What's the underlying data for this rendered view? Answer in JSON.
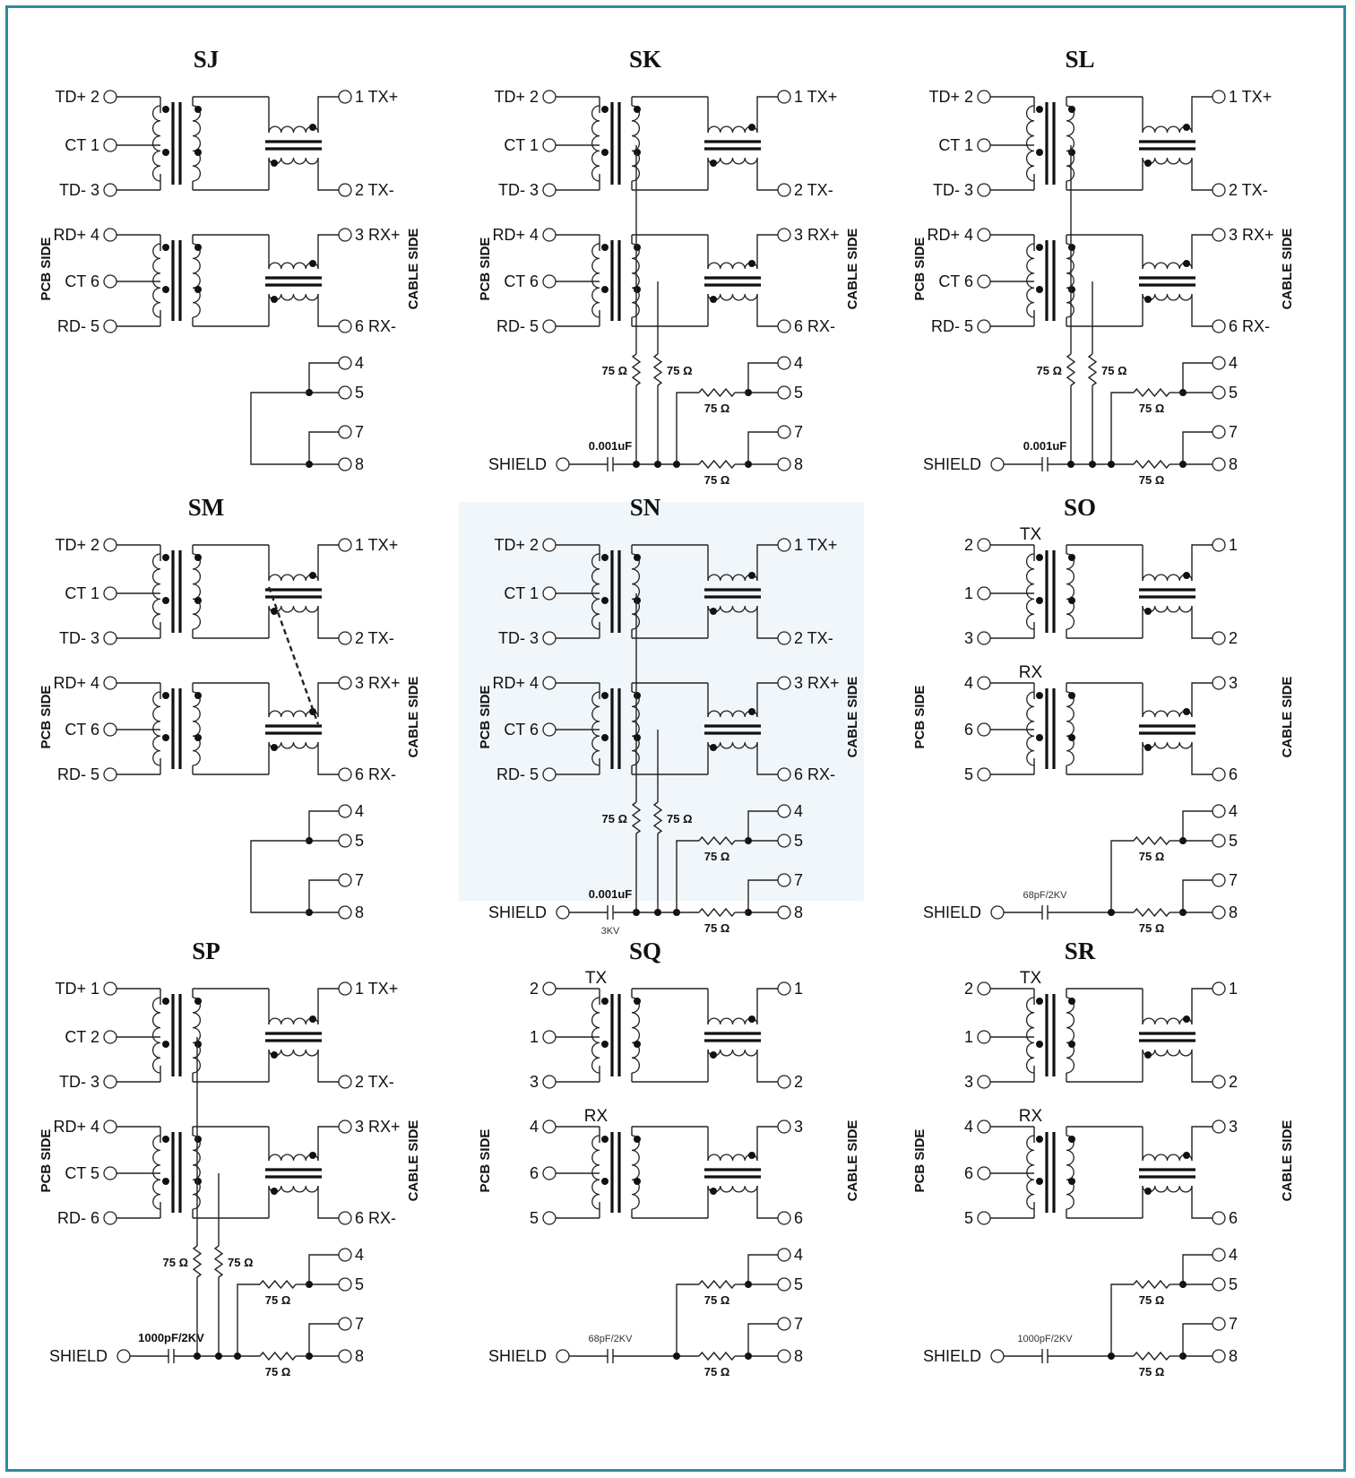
{
  "colors": {
    "frame": "#2f8a9c",
    "line": "#222222",
    "panel_highlight": "#f1f6fa"
  },
  "labels": {
    "pcb_side": "PCB SIDE",
    "cable_side": "CABLE SIDE",
    "shield": "SHIELD",
    "tx": "TX",
    "rx": "RX",
    "ohm75": "75 Ω"
  },
  "panels": [
    {
      "id": "SJ",
      "title": "SJ",
      "left": [
        "TD+ 2",
        "CT 1",
        "TD- 3",
        "RD+ 4",
        "CT 6",
        "RD- 5"
      ],
      "right": [
        "1 TX+",
        "2 TX-",
        "3 RX+",
        "6 RX-",
        "4",
        "5",
        "7",
        "8"
      ]
    },
    {
      "id": "SK",
      "title": "SK",
      "left": [
        "TD+ 2",
        "CT 1",
        "TD- 3",
        "RD+ 4",
        "CT 6",
        "RD- 5"
      ],
      "right": [
        "1 TX+",
        "2 TX-",
        "3 RX+",
        "6 RX-",
        "4",
        "5",
        "7",
        "8"
      ],
      "cap": "0.001uF"
    },
    {
      "id": "SL",
      "title": "SL",
      "left": [
        "TD+ 2",
        "CT 1",
        "TD- 3",
        "RD+ 4",
        "CT 6",
        "RD- 5"
      ],
      "right": [
        "1 TX+",
        "2 TX-",
        "3 RX+",
        "6 RX-",
        "4",
        "5",
        "7",
        "8"
      ],
      "cap": "0.001uF"
    },
    {
      "id": "SM",
      "title": "SM",
      "left": [
        "TD+ 2",
        "CT 1",
        "TD- 3",
        "RD+ 4",
        "CT 6",
        "RD- 5"
      ],
      "right": [
        "1 TX+",
        "2 TX-",
        "3 RX+",
        "6 RX-",
        "4",
        "5",
        "7",
        "8"
      ]
    },
    {
      "id": "SN",
      "title": "SN",
      "left": [
        "TD+ 2",
        "CT 1",
        "TD- 3",
        "RD+ 4",
        "CT 6",
        "RD- 5"
      ],
      "right": [
        "1 TX+",
        "2 TX-",
        "3 RX+",
        "6 RX-",
        "4",
        "5",
        "7",
        "8"
      ],
      "cap": "0.001uF",
      "cap_rating": "3KV"
    },
    {
      "id": "SO",
      "title": "SO",
      "left": [
        "2",
        "1",
        "3",
        "4",
        "6",
        "5"
      ],
      "right": [
        "1",
        "2",
        "3",
        "6",
        "4",
        "5",
        "7",
        "8"
      ],
      "cap": "68pF/2KV"
    },
    {
      "id": "SP",
      "title": "SP",
      "left": [
        "TD+ 1",
        "CT 2",
        "TD- 3",
        "RD+ 4",
        "CT 5",
        "RD- 6"
      ],
      "right": [
        "1 TX+",
        "2 TX-",
        "3 RX+",
        "6 RX-",
        "4",
        "5",
        "7",
        "8"
      ],
      "cap": "1000pF/2KV"
    },
    {
      "id": "SQ",
      "title": "SQ",
      "left": [
        "2",
        "1",
        "3",
        "4",
        "6",
        "5"
      ],
      "right": [
        "1",
        "2",
        "3",
        "6",
        "4",
        "5",
        "7",
        "8"
      ],
      "cap": "68pF/2KV"
    },
    {
      "id": "SR",
      "title": "SR",
      "left": [
        "2",
        "1",
        "3",
        "4",
        "6",
        "5"
      ],
      "right": [
        "1",
        "2",
        "3",
        "6",
        "4",
        "5",
        "7",
        "8"
      ],
      "cap": "1000pF/2KV"
    }
  ]
}
